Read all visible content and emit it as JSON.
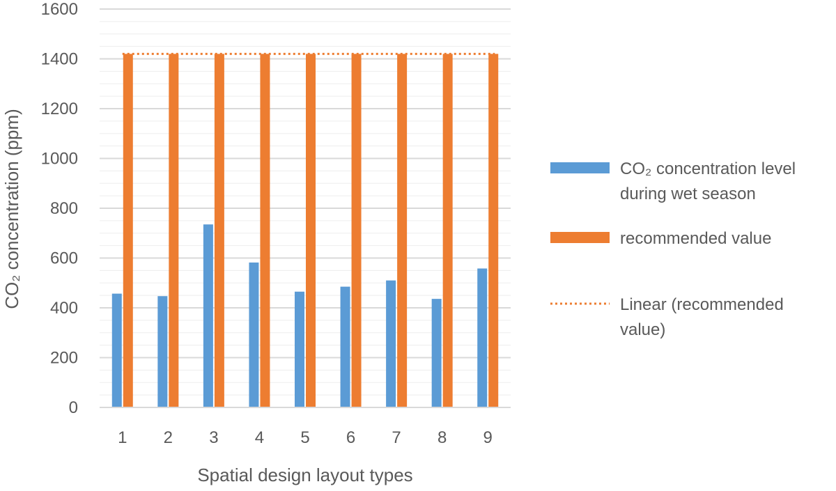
{
  "chart_data": {
    "type": "bar",
    "title": "",
    "xlabel": "Spatial design layout types",
    "ylabel": "CO₂ concentration (ppm)",
    "categories": [
      "1",
      "2",
      "3",
      "4",
      "5",
      "6",
      "7",
      "8",
      "9"
    ],
    "ylim": [
      0,
      1600
    ],
    "yticks": [
      0,
      200,
      400,
      600,
      800,
      1000,
      1200,
      1400,
      1600
    ],
    "grid": "horizontal major and minor",
    "legend_position": "right",
    "series": [
      {
        "name": "CO₂ concentration level during wet season",
        "color": "#5B9BD5",
        "values": [
          457,
          447,
          735,
          582,
          465,
          485,
          510,
          436,
          558
        ]
      },
      {
        "name": "recommended value",
        "color": "#ED7D31",
        "values": [
          1420,
          1420,
          1420,
          1420,
          1420,
          1420,
          1420,
          1420,
          1420
        ]
      }
    ],
    "trendline": {
      "name": "Linear (recommended value)",
      "of_series": "recommended value",
      "style": "dotted",
      "color": "#ED7D31",
      "value": 1420
    }
  },
  "legend": {
    "items": [
      {
        "label_lines": [
          "CO₂ concentration level",
          "during wet season"
        ],
        "swatch": "bar",
        "color": "#5B9BD5"
      },
      {
        "label_lines": [
          "recommended value"
        ],
        "swatch": "bar",
        "color": "#ED7D31"
      },
      {
        "label_lines": [
          "Linear (recommended",
          "value)"
        ],
        "swatch": "dotted-line",
        "color": "#ED7D31"
      }
    ]
  }
}
